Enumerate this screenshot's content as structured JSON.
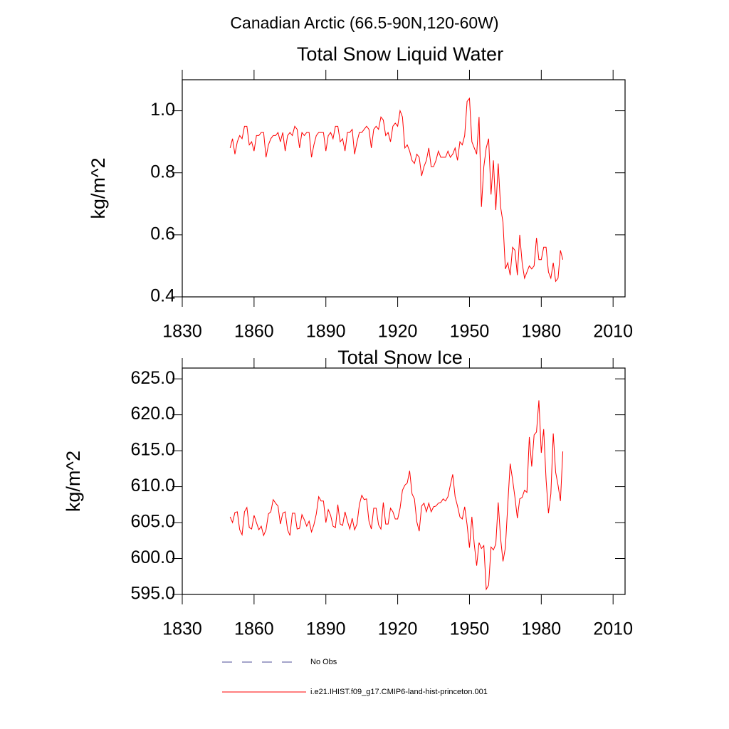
{
  "title": "Canadian Arctic (66.5-90N,120-60W)",
  "legend": [
    {
      "label": "No Obs",
      "color": "#4b4b96",
      "style": "dashed"
    }
  ],
  "chart_data": [
    {
      "type": "line",
      "title": "Total Snow Liquid Water",
      "ylabel": "kg/m^2",
      "xlim": [
        1830,
        2015
      ],
      "xticks": [
        1830,
        1860,
        1890,
        1920,
        1950,
        1980,
        2010
      ],
      "ylim": [
        0.4,
        1.1
      ],
      "yticks": [
        0.4,
        0.6,
        0.8,
        {
          "value": 1,
          "label": "1.0"
        }
      ],
      "x": [
        1850,
        1851,
        1852,
        1853,
        1854,
        1855,
        1856,
        1857,
        1858,
        1859,
        1860,
        1861,
        1862,
        1863,
        1864,
        1865,
        1866,
        1867,
        1868,
        1869,
        1870,
        1871,
        1872,
        1873,
        1874,
        1875,
        1876,
        1877,
        1878,
        1879,
        1880,
        1881,
        1882,
        1883,
        1884,
        1885,
        1886,
        1887,
        1888,
        1889,
        1890,
        1891,
        1892,
        1893,
        1894,
        1895,
        1896,
        1897,
        1898,
        1899,
        1900,
        1901,
        1902,
        1903,
        1904,
        1905,
        1906,
        1907,
        1908,
        1909,
        1910,
        1911,
        1912,
        1913,
        1914,
        1915,
        1916,
        1917,
        1918,
        1919,
        1920,
        1921,
        1922,
        1923,
        1924,
        1925,
        1926,
        1927,
        1928,
        1929,
        1930,
        1931,
        1932,
        1933,
        1934,
        1935,
        1936,
        1937,
        1938,
        1939,
        1940,
        1941,
        1942,
        1943,
        1944,
        1945,
        1946,
        1947,
        1948,
        1949,
        1950,
        1951,
        1952,
        1953,
        1954,
        1955,
        1956,
        1957,
        1958,
        1959,
        1960,
        1961,
        1962,
        1963,
        1964,
        1965,
        1966,
        1967,
        1968,
        1969,
        1970,
        1971,
        1972,
        1973,
        1974,
        1975,
        1976,
        1977,
        1978,
        1979,
        1980,
        1981,
        1982,
        1983,
        1984,
        1985,
        1986,
        1987,
        1988,
        1989
      ],
      "series": [
        {
          "name": "i.e21.IHIST.f09_g17.CMIP6-land-hist-princeton.001",
          "color": "#ff0000",
          "values": [
            0.88,
            0.91,
            0.86,
            0.9,
            0.92,
            0.91,
            0.95,
            0.95,
            0.89,
            0.9,
            0.87,
            0.92,
            0.92,
            0.93,
            0.93,
            0.85,
            0.89,
            0.91,
            0.92,
            0.92,
            0.93,
            0.9,
            0.93,
            0.87,
            0.92,
            0.93,
            0.92,
            0.95,
            0.94,
            0.88,
            0.93,
            0.92,
            0.93,
            0.93,
            0.85,
            0.89,
            0.92,
            0.93,
            0.93,
            0.93,
            0.87,
            0.92,
            0.93,
            0.91,
            0.95,
            0.95,
            0.9,
            0.91,
            0.87,
            0.93,
            0.93,
            0.94,
            0.86,
            0.9,
            0.93,
            0.93,
            0.94,
            0.95,
            0.94,
            0.88,
            0.94,
            0.95,
            0.94,
            0.98,
            0.97,
            0.92,
            0.93,
            0.9,
            0.95,
            0.96,
            0.95,
            1.0,
            0.98,
            0.88,
            0.89,
            0.87,
            0.84,
            0.83,
            0.86,
            0.85,
            0.79,
            0.82,
            0.84,
            0.88,
            0.82,
            0.82,
            0.84,
            0.87,
            0.85,
            0.85,
            0.85,
            0.87,
            0.85,
            0.86,
            0.88,
            0.84,
            0.9,
            0.89,
            0.92,
            1.03,
            1.04,
            0.9,
            0.88,
            0.86,
            0.98,
            0.69,
            0.82,
            0.88,
            0.91,
            0.73,
            0.84,
            0.68,
            0.83,
            0.69,
            0.64,
            0.49,
            0.51,
            0.47,
            0.56,
            0.55,
            0.47,
            0.6,
            0.51,
            0.46,
            0.48,
            0.5,
            0.49,
            0.5,
            0.59,
            0.52,
            0.52,
            0.56,
            0.56,
            0.48,
            0.46,
            0.51,
            0.45,
            0.46,
            0.55,
            0.52
          ]
        }
      ]
    },
    {
      "type": "line",
      "title": "Total Snow Ice",
      "ylabel": "kg/m^2",
      "xlim": [
        1830,
        2015
      ],
      "xticks": [
        1830,
        1860,
        1890,
        1920,
        1950,
        1980,
        2010
      ],
      "ylim": [
        595,
        626.5
      ],
      "yticks": [
        {
          "value": 595,
          "label": "595.0"
        },
        {
          "value": 600,
          "label": "600.0"
        },
        {
          "value": 605,
          "label": "605.0"
        },
        {
          "value": 610,
          "label": "610.0"
        },
        {
          "value": 615,
          "label": "615.0"
        },
        {
          "value": 620,
          "label": "620.0"
        },
        {
          "value": 625,
          "label": "625.0"
        }
      ],
      "x": [
        1850,
        1851,
        1852,
        1853,
        1854,
        1855,
        1856,
        1857,
        1858,
        1859,
        1860,
        1861,
        1862,
        1863,
        1864,
        1865,
        1866,
        1867,
        1868,
        1869,
        1870,
        1871,
        1872,
        1873,
        1874,
        1875,
        1876,
        1877,
        1878,
        1879,
        1880,
        1881,
        1882,
        1883,
        1884,
        1885,
        1886,
        1887,
        1888,
        1889,
        1890,
        1891,
        1892,
        1893,
        1894,
        1895,
        1896,
        1897,
        1898,
        1899,
        1900,
        1901,
        1902,
        1903,
        1904,
        1905,
        1906,
        1907,
        1908,
        1909,
        1910,
        1911,
        1912,
        1913,
        1914,
        1915,
        1916,
        1917,
        1918,
        1919,
        1920,
        1921,
        1922,
        1923,
        1924,
        1925,
        1926,
        1927,
        1928,
        1929,
        1930,
        1931,
        1932,
        1933,
        1934,
        1935,
        1936,
        1937,
        1938,
        1939,
        1940,
        1941,
        1942,
        1943,
        1944,
        1945,
        1946,
        1947,
        1948,
        1949,
        1950,
        1951,
        1952,
        1953,
        1954,
        1955,
        1956,
        1957,
        1958,
        1959,
        1960,
        1961,
        1962,
        1963,
        1964,
        1965,
        1966,
        1967,
        1968,
        1969,
        1970,
        1971,
        1972,
        1973,
        1974,
        1975,
        1976,
        1977,
        1978,
        1979,
        1980,
        1981,
        1982,
        1983,
        1984,
        1985,
        1986,
        1987,
        1988,
        1989
      ],
      "series": [
        {
          "color": "#ff0000",
          "values": [
            605.8,
            605.0,
            606.4,
            606.5,
            604.0,
            603.3,
            606.5,
            607.1,
            604.3,
            604.1,
            606.0,
            605.0,
            604.0,
            604.5,
            603.2,
            604.0,
            606.2,
            606.5,
            608.2,
            607.7,
            607.3,
            604.8,
            606.3,
            606.5,
            604.0,
            603.2,
            606.3,
            606.3,
            604.1,
            604.2,
            606.1,
            605.4,
            604.5,
            605.2,
            603.7,
            604.7,
            606.2,
            608.6,
            608.0,
            608.0,
            605.0,
            606.8,
            606.0,
            604.5,
            604.3,
            607.5,
            604.8,
            604.6,
            606.5,
            605.2,
            604.1,
            605.6,
            604.0,
            604.8,
            607.5,
            608.8,
            608.2,
            608.3,
            605.2,
            604.1,
            607.0,
            607.0,
            604.7,
            604.1,
            607.8,
            604.8,
            604.8,
            607.0,
            606.5,
            605.5,
            605.5,
            607.0,
            609.5,
            610.2,
            610.5,
            612.2,
            609.0,
            608.3,
            605.1,
            603.8,
            607.3,
            607.7,
            606.5,
            607.7,
            606.5,
            607.2,
            607.3,
            607.7,
            607.8,
            608.3,
            608.0,
            608.6,
            610.2,
            611.7,
            608.6,
            607.3,
            605.8,
            605.5,
            607.2,
            604.7,
            601.5,
            605.8,
            602.0,
            599.0,
            602.2,
            601.4,
            601.8,
            595.7,
            596.3,
            601.6,
            601.2,
            602.0,
            607.8,
            602.8,
            599.6,
            601.5,
            607.5,
            613.2,
            611.0,
            608.5,
            605.6,
            608.3,
            608.5,
            609.5,
            609.2,
            616.9,
            612.8,
            617.2,
            617.6,
            622.0,
            614.7,
            618.0,
            611.0,
            606.3,
            609.0,
            617.4,
            612.0,
            610.2,
            608.0,
            614.9
          ]
        }
      ]
    }
  ]
}
